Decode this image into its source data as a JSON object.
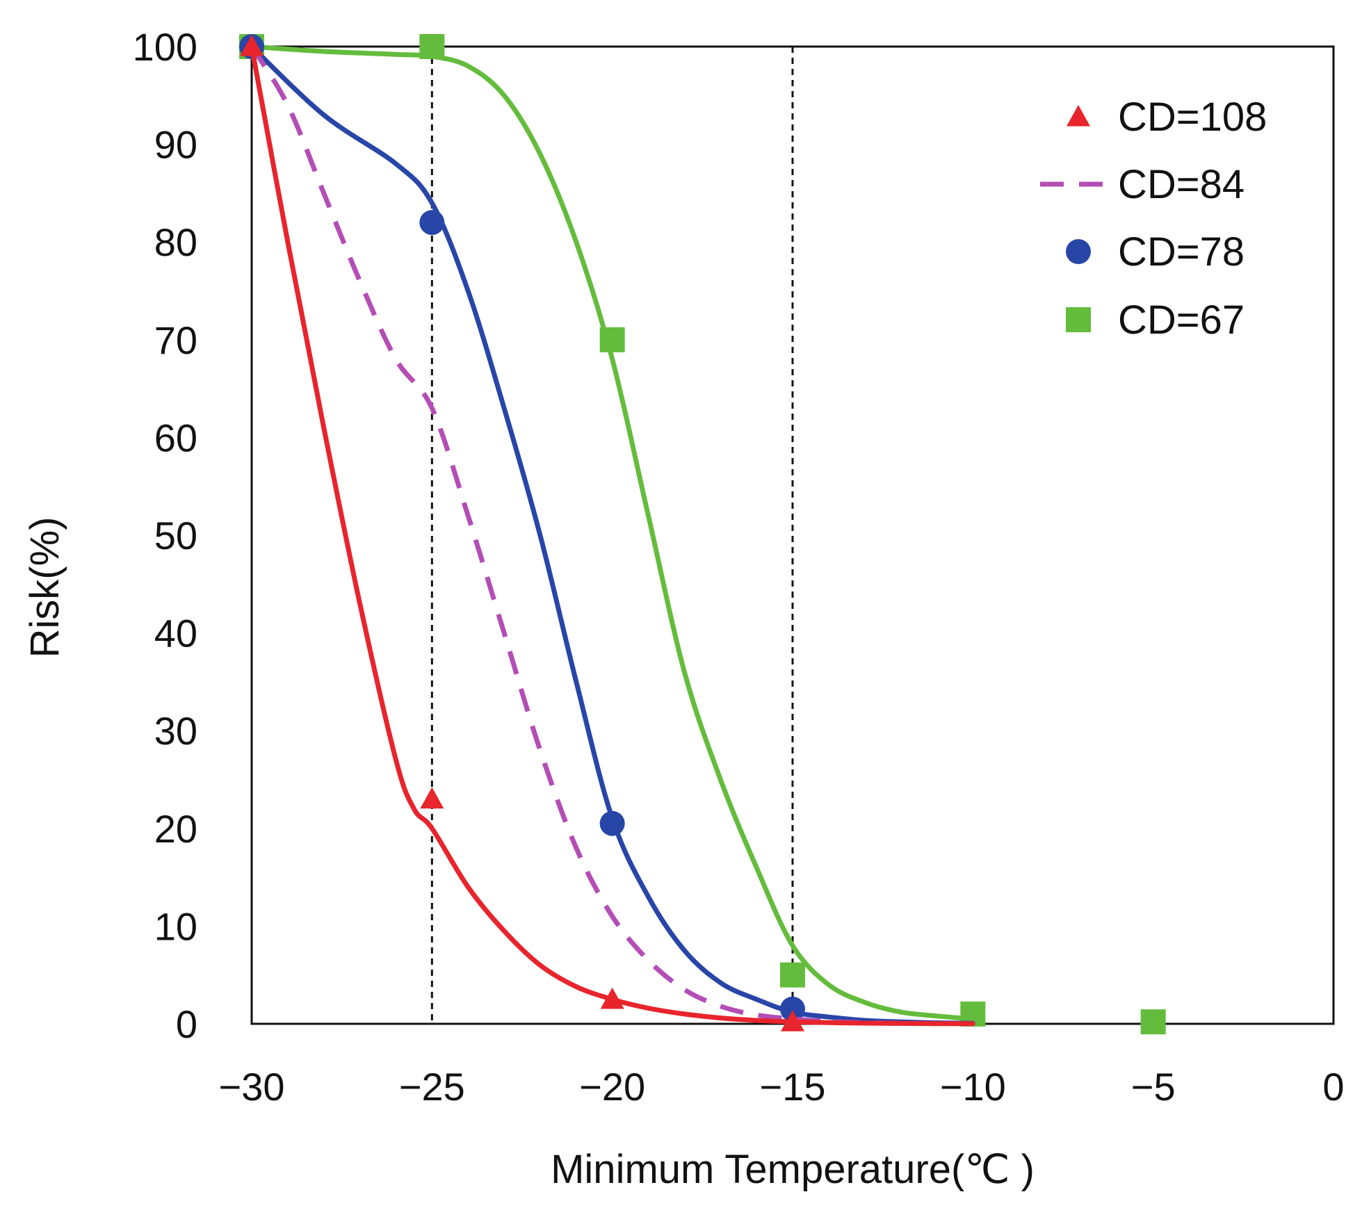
{
  "chart_data": {
    "type": "line",
    "title": "",
    "xlabel": "Minimum Temperature(℃ )",
    "ylabel": "Risk(%)",
    "xlim": [
      -30,
      0
    ],
    "ylim": [
      0,
      100
    ],
    "x_ticks": [
      -30,
      -25,
      -20,
      -15,
      -10,
      -5,
      0
    ],
    "x_tick_labels": [
      "−30",
      "−25",
      "−20",
      "−15",
      "−10",
      "−5",
      "0"
    ],
    "y_ticks": [
      0,
      10,
      20,
      30,
      40,
      50,
      60,
      70,
      80,
      90,
      100
    ],
    "y_tick_labels": [
      "0",
      "10",
      "20",
      "30",
      "40",
      "50",
      "60",
      "70",
      "80",
      "90",
      "100"
    ],
    "grid": false,
    "legend_position": "top-right",
    "reference_lines_x": [
      -25,
      -15
    ],
    "series": [
      {
        "name": "CD=108",
        "color": "#e8242c",
        "marker": "triangle",
        "dash": false,
        "curve": {
          "x": [
            -30,
            -29,
            -28,
            -27,
            -26,
            -25.5,
            -25,
            -24,
            -23,
            -22,
            -21,
            -20,
            -19,
            -18,
            -17,
            -16,
            -15,
            -14,
            -13,
            -12,
            -11,
            -10
          ],
          "y": [
            100,
            80,
            61,
            43,
            27,
            22,
            20,
            14,
            9.5,
            6,
            3.8,
            2.5,
            1.6,
            1.0,
            0.6,
            0.35,
            0.2,
            0.12,
            0.07,
            0.04,
            0.02,
            0.01
          ]
        },
        "markers": {
          "x": [
            -30,
            -25,
            -20,
            -15
          ],
          "y": [
            100,
            23,
            2.5,
            0.2
          ]
        }
      },
      {
        "name": "CD=84",
        "color": "#b44db6",
        "marker": "none",
        "dash": true,
        "curve": {
          "x": [
            -30,
            -29,
            -28,
            -27,
            -26,
            -25,
            -24,
            -23,
            -22,
            -21,
            -20,
            -19,
            -18,
            -17,
            -16,
            -15,
            -14,
            -13,
            -12,
            -11
          ],
          "y": [
            100,
            94,
            85,
            76,
            68,
            63,
            52,
            40,
            28,
            18,
            11,
            6.5,
            3.5,
            1.8,
            0.9,
            0.5,
            0.25,
            0.12,
            0.06,
            0.03
          ]
        },
        "markers": {
          "x": [],
          "y": []
        }
      },
      {
        "name": "CD=78",
        "color": "#2845a8",
        "marker": "circle",
        "dash": false,
        "curve": {
          "x": [
            -30,
            -28,
            -26,
            -25,
            -24,
            -23,
            -22,
            -21,
            -20,
            -19,
            -18,
            -17,
            -16,
            -15,
            -14,
            -13,
            -12,
            -11,
            -10
          ],
          "y": [
            100,
            93,
            88,
            84,
            75,
            63,
            50,
            35,
            21,
            13,
            7.5,
            4.2,
            2.5,
            1.2,
            0.7,
            0.35,
            0.2,
            0.1,
            0.05
          ]
        },
        "markers": {
          "x": [
            -30,
            -25,
            -20,
            -15
          ],
          "y": [
            100,
            82,
            20.5,
            1.5
          ]
        }
      },
      {
        "name": "CD=67",
        "color": "#64bc3c",
        "marker": "square",
        "dash": false,
        "curve": {
          "x": [
            -30,
            -28,
            -26,
            -25,
            -24,
            -23,
            -22,
            -21,
            -20,
            -19,
            -18,
            -17,
            -16,
            -15,
            -14,
            -13,
            -12,
            -11,
            -10
          ],
          "y": [
            100,
            99.5,
            99.2,
            99,
            98,
            95,
            89,
            80,
            68,
            52,
            36,
            25,
            16,
            8,
            4,
            2.2,
            1.2,
            0.8,
            0.5
          ]
        },
        "markers": {
          "x": [
            -30,
            -25,
            -20,
            -15,
            -10,
            -5
          ],
          "y": [
            100,
            100,
            70,
            5,
            1,
            0.2
          ]
        }
      }
    ]
  }
}
